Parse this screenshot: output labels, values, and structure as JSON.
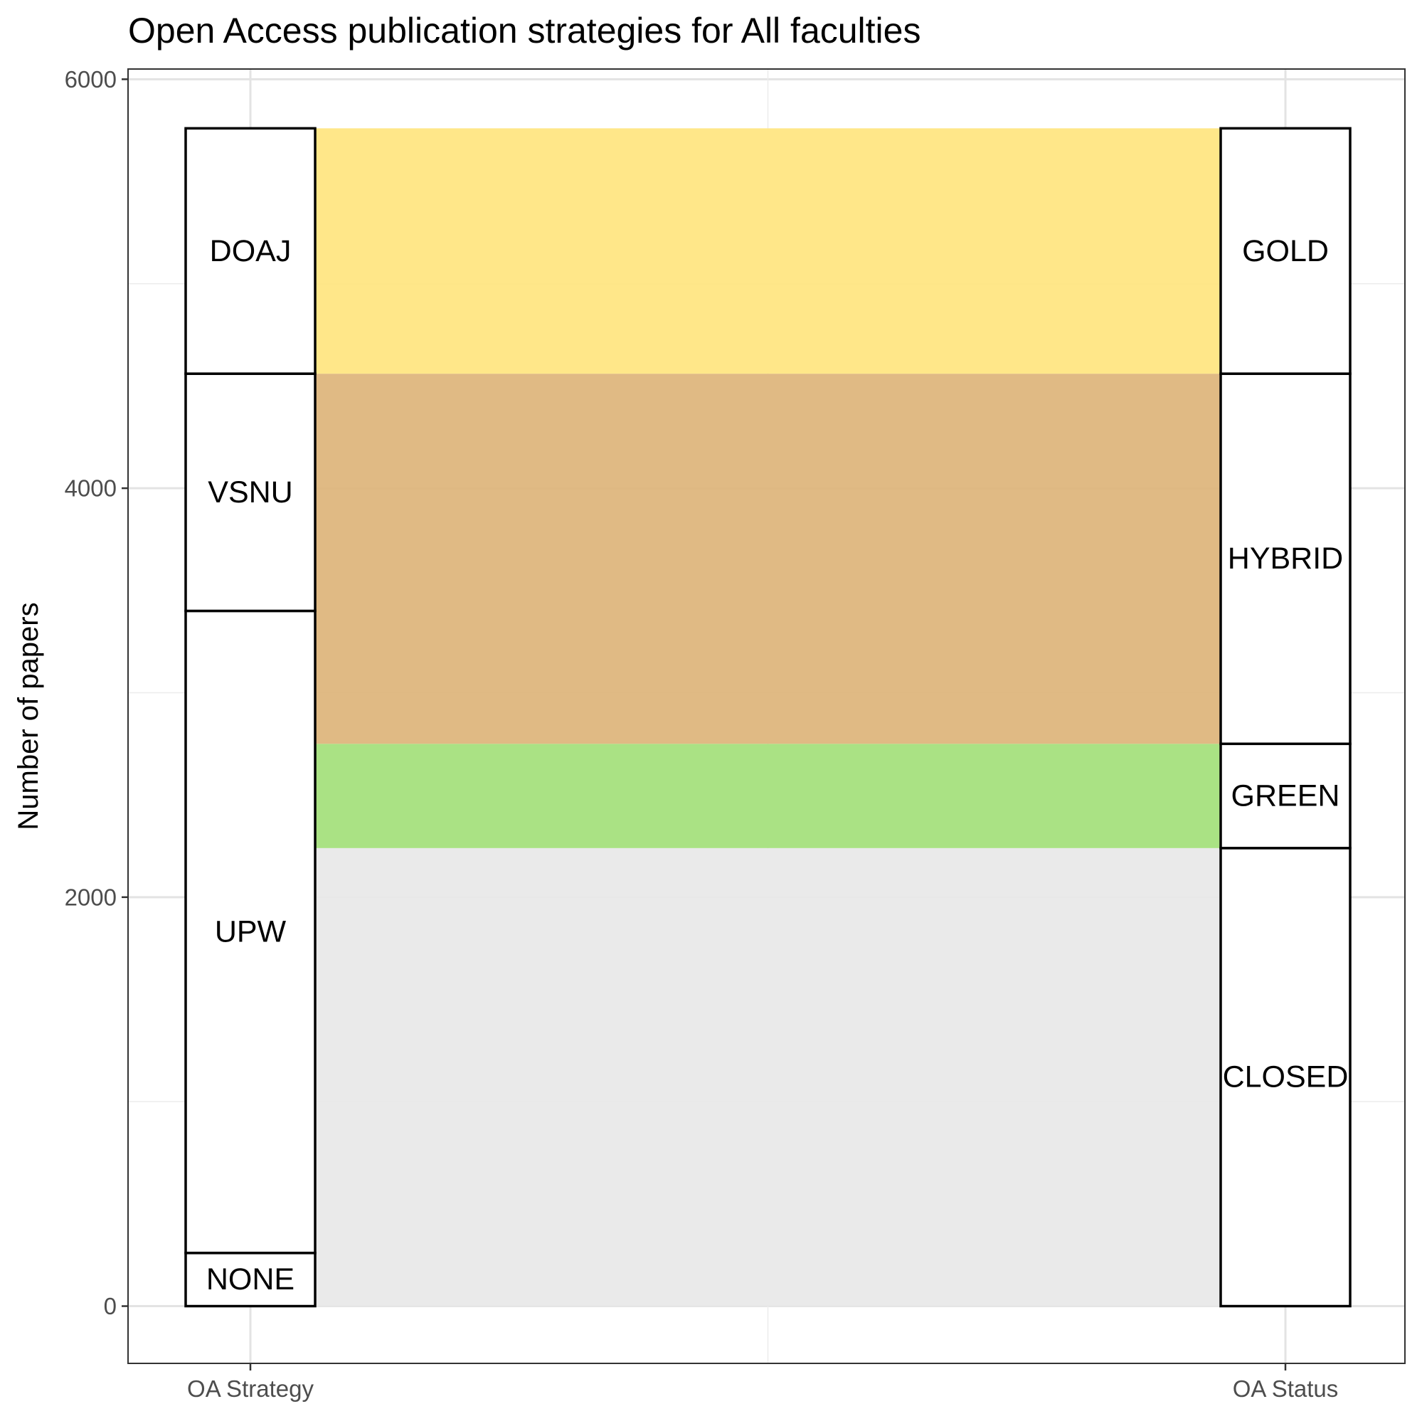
{
  "chart_data": {
    "type": "alluvial",
    "title": "Open Access publication strategies for All faculties",
    "xlabel": "",
    "ylabel": "Number of papers",
    "ylim": [
      -280,
      6050
    ],
    "y_ticks": [
      0,
      2000,
      4000,
      6000
    ],
    "grid": true,
    "axes": [
      "OA Strategy",
      "OA Status"
    ],
    "strata": {
      "OA Strategy": [
        {
          "label": "NONE",
          "value": 260
        },
        {
          "label": "UPW",
          "value": 3140
        },
        {
          "label": "VSNU",
          "value": 1160
        },
        {
          "label": "DOAJ",
          "value": 1200
        }
      ],
      "OA Status": [
        {
          "label": "CLOSED",
          "value": 2240
        },
        {
          "label": "GREEN",
          "value": 510
        },
        {
          "label": "HYBRID",
          "value": 1810
        },
        {
          "label": "GOLD",
          "value": 1200
        }
      ]
    },
    "flows": [
      {
        "to": "CLOSED",
        "value": 2240,
        "color": "#e8e8e8"
      },
      {
        "to": "GREEN",
        "value": 510,
        "color": "#a3e07a"
      },
      {
        "to": "HYBRID",
        "value": 1810,
        "color": "#ddb47a"
      },
      {
        "to": "GOLD",
        "value": 1200,
        "color": "#ffe57f"
      }
    ]
  }
}
